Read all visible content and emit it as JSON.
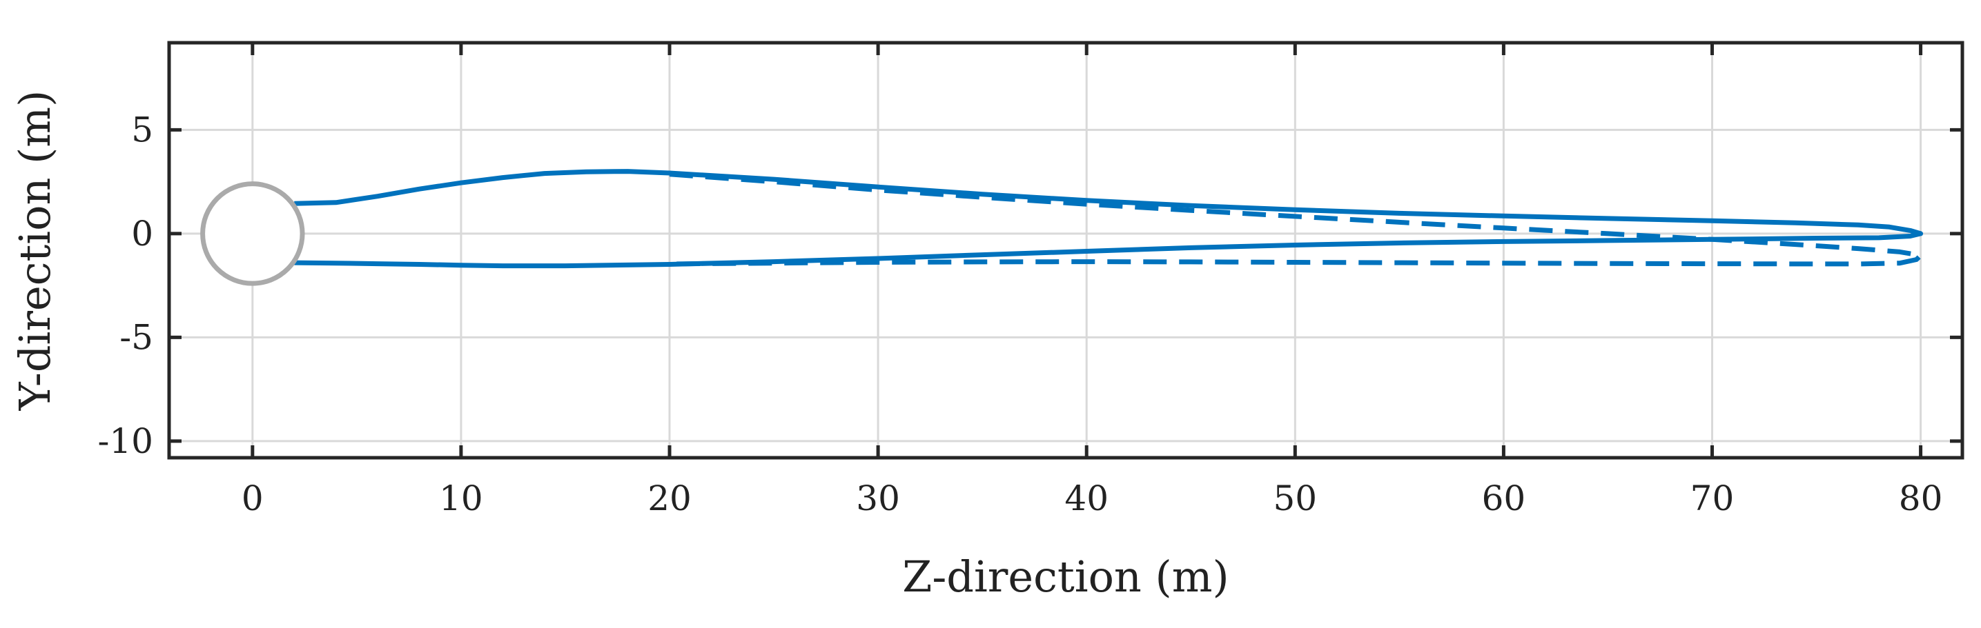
{
  "chart_data": {
    "type": "line",
    "xlabel": "Z-direction (m)",
    "ylabel": "Y-direction (m)",
    "xlim": [
      -4,
      82
    ],
    "ylim": [
      -10.8,
      9.2
    ],
    "xticks": [
      0,
      10,
      20,
      30,
      40,
      50,
      60,
      70,
      80
    ],
    "xtick_labels": [
      "0",
      "10",
      "20",
      "30",
      "40",
      "50",
      "60",
      "70",
      "80"
    ],
    "yticks": [
      5,
      0,
      -5,
      -10
    ],
    "ytick_labels": [
      "5",
      "0",
      "-5",
      "-10"
    ],
    "grid": true,
    "colors": {
      "series": "#0072bd",
      "circle": "#aaaaaa",
      "grid": "#d9d9d9",
      "axes": "#262626"
    },
    "circle": {
      "center": [
        0,
        0
      ],
      "radius": 2.4
    },
    "series": [
      {
        "style": "solid",
        "x": [
          2,
          4,
          6,
          8,
          10,
          12,
          14,
          16,
          18,
          20,
          25,
          30,
          35,
          40,
          45,
          50,
          55,
          60,
          65,
          70,
          74,
          77,
          78.5,
          79.5,
          80,
          79.5,
          78,
          75,
          70,
          65,
          60,
          55,
          50,
          45,
          40,
          35,
          30,
          25,
          20,
          15,
          12,
          10,
          8,
          6,
          4,
          2
        ],
        "y": [
          1.45,
          1.5,
          1.8,
          2.15,
          2.45,
          2.7,
          2.9,
          2.98,
          3.0,
          2.92,
          2.62,
          2.25,
          1.9,
          1.6,
          1.35,
          1.15,
          0.98,
          0.85,
          0.73,
          0.62,
          0.52,
          0.42,
          0.32,
          0.15,
          0.0,
          -0.12,
          -0.2,
          -0.22,
          -0.28,
          -0.33,
          -0.38,
          -0.45,
          -0.55,
          -0.68,
          -0.85,
          -1.02,
          -1.2,
          -1.35,
          -1.48,
          -1.55,
          -1.55,
          -1.52,
          -1.48,
          -1.45,
          -1.42,
          -1.4
        ]
      },
      {
        "style": "dashed",
        "x": [
          20,
          25,
          30,
          35,
          40,
          45,
          50,
          55,
          60,
          65,
          70,
          74,
          77,
          79,
          80,
          79.8,
          79,
          77,
          75,
          70,
          65,
          60,
          55,
          50,
          45,
          40,
          35,
          30,
          25,
          20
        ],
        "y": [
          2.86,
          2.5,
          2.1,
          1.75,
          1.42,
          1.12,
          0.83,
          0.55,
          0.27,
          0.0,
          -0.28,
          -0.52,
          -0.72,
          -0.88,
          -1.05,
          -1.25,
          -1.42,
          -1.46,
          -1.46,
          -1.45,
          -1.44,
          -1.42,
          -1.4,
          -1.38,
          -1.36,
          -1.35,
          -1.36,
          -1.38,
          -1.42,
          -1.46
        ]
      }
    ]
  }
}
